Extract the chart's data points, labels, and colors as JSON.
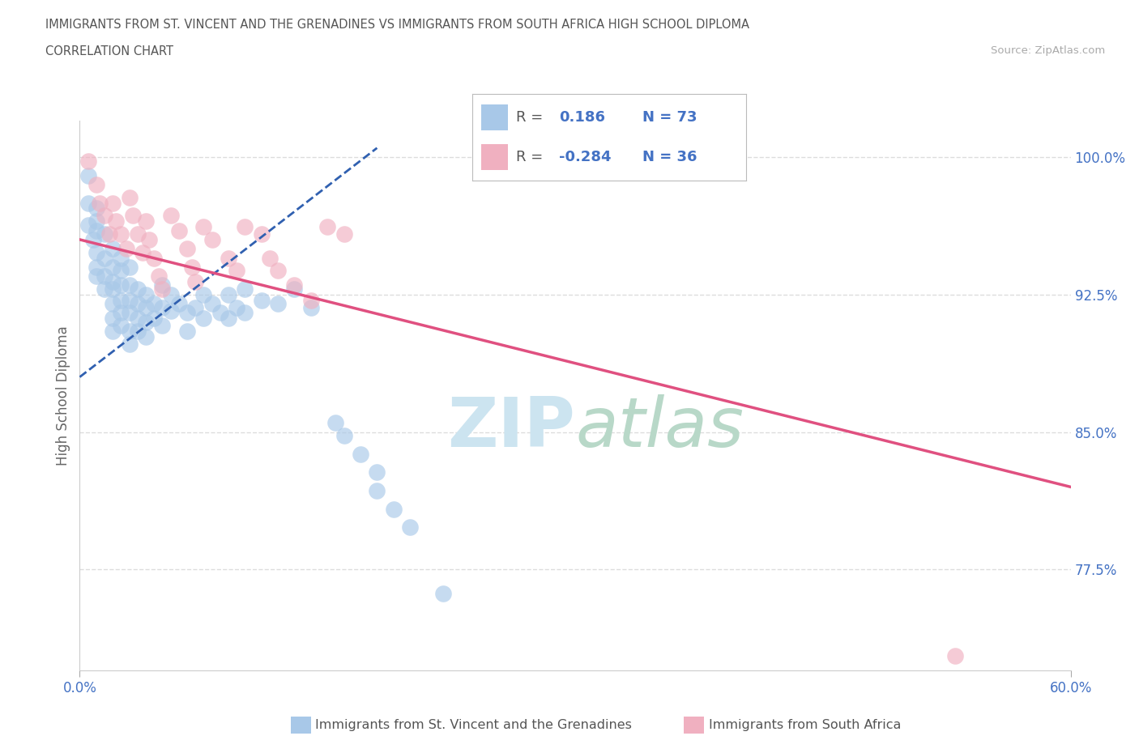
{
  "title_line1": "IMMIGRANTS FROM ST. VINCENT AND THE GRENADINES VS IMMIGRANTS FROM SOUTH AFRICA HIGH SCHOOL DIPLOMA",
  "title_line2": "CORRELATION CHART",
  "source_text": "Source: ZipAtlas.com",
  "xlim": [
    0.0,
    0.6
  ],
  "ylim": [
    0.72,
    1.02
  ],
  "xtick_positions": [
    0.0,
    0.6
  ],
  "xtick_labels": [
    "0.0%",
    "60.0%"
  ],
  "ytick_values": [
    0.775,
    0.85,
    0.925,
    1.0
  ],
  "ytick_labels": [
    "77.5%",
    "85.0%",
    "92.5%",
    "100.0%"
  ],
  "ylabel_label": "High School Diploma",
  "scatter_blue_color": "#a8c8e8",
  "scatter_pink_color": "#f0b0c0",
  "trend_blue_color": "#3060b0",
  "trend_pink_color": "#e05080",
  "watermark_color": "#cce4f0",
  "legend_color": "#4472c4",
  "blue_R": "0.186",
  "blue_N": "73",
  "pink_R": "-0.284",
  "pink_N": "36",
  "blue_trend_x": [
    0.0,
    0.18
  ],
  "blue_trend_y": [
    0.88,
    1.005
  ],
  "pink_trend_x": [
    0.0,
    0.6
  ],
  "pink_trend_y": [
    0.955,
    0.82
  ],
  "blue_points_x": [
    0.005,
    0.005,
    0.005,
    0.008,
    0.01,
    0.01,
    0.01,
    0.01,
    0.01,
    0.01,
    0.015,
    0.015,
    0.015,
    0.015,
    0.02,
    0.02,
    0.02,
    0.02,
    0.02,
    0.02,
    0.02,
    0.025,
    0.025,
    0.025,
    0.025,
    0.025,
    0.025,
    0.03,
    0.03,
    0.03,
    0.03,
    0.03,
    0.03,
    0.035,
    0.035,
    0.035,
    0.035,
    0.04,
    0.04,
    0.04,
    0.04,
    0.045,
    0.045,
    0.05,
    0.05,
    0.05,
    0.055,
    0.055,
    0.06,
    0.065,
    0.065,
    0.07,
    0.075,
    0.075,
    0.08,
    0.085,
    0.09,
    0.09,
    0.095,
    0.1,
    0.1,
    0.11,
    0.12,
    0.13,
    0.14,
    0.155,
    0.16,
    0.17,
    0.18,
    0.18,
    0.19,
    0.2,
    0.22
  ],
  "blue_points_y": [
    0.99,
    0.975,
    0.963,
    0.955,
    0.972,
    0.96,
    0.948,
    0.94,
    0.935,
    0.965,
    0.958,
    0.945,
    0.935,
    0.928,
    0.95,
    0.94,
    0.932,
    0.928,
    0.92,
    0.912,
    0.905,
    0.945,
    0.938,
    0.93,
    0.922,
    0.915,
    0.908,
    0.94,
    0.93,
    0.922,
    0.915,
    0.905,
    0.898,
    0.928,
    0.92,
    0.912,
    0.905,
    0.925,
    0.918,
    0.91,
    0.902,
    0.92,
    0.912,
    0.93,
    0.918,
    0.908,
    0.925,
    0.916,
    0.92,
    0.915,
    0.905,
    0.918,
    0.925,
    0.912,
    0.92,
    0.915,
    0.925,
    0.912,
    0.918,
    0.928,
    0.915,
    0.922,
    0.92,
    0.928,
    0.918,
    0.855,
    0.848,
    0.838,
    0.828,
    0.818,
    0.808,
    0.798,
    0.762
  ],
  "pink_points_x": [
    0.005,
    0.01,
    0.012,
    0.015,
    0.018,
    0.02,
    0.022,
    0.025,
    0.028,
    0.03,
    0.032,
    0.035,
    0.038,
    0.04,
    0.042,
    0.045,
    0.048,
    0.05,
    0.055,
    0.06,
    0.065,
    0.068,
    0.07,
    0.075,
    0.08,
    0.09,
    0.095,
    0.1,
    0.11,
    0.115,
    0.12,
    0.13,
    0.14,
    0.15,
    0.16,
    0.53
  ],
  "pink_points_y": [
    0.998,
    0.985,
    0.975,
    0.968,
    0.958,
    0.975,
    0.965,
    0.958,
    0.95,
    0.978,
    0.968,
    0.958,
    0.948,
    0.965,
    0.955,
    0.945,
    0.935,
    0.928,
    0.968,
    0.96,
    0.95,
    0.94,
    0.932,
    0.962,
    0.955,
    0.945,
    0.938,
    0.962,
    0.958,
    0.945,
    0.938,
    0.93,
    0.922,
    0.962,
    0.958,
    0.728
  ],
  "footer_label1": "Immigrants from St. Vincent and the Grenadines",
  "footer_label2": "Immigrants from South Africa"
}
